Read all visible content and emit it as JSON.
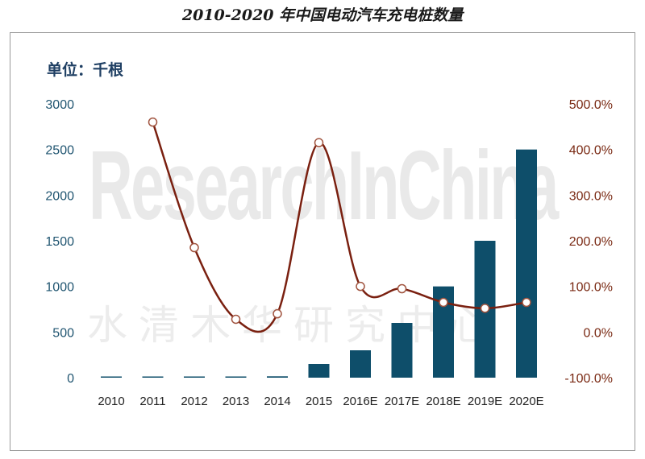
{
  "title": "2010-2020 年中国电动汽车充电桩数量",
  "unit_label": "单位：千根",
  "watermark": {
    "en": "ResearchInChina",
    "cn": "水清木华研究中心"
  },
  "colors": {
    "bar": "#0e4e6a",
    "line": "#7a2010",
    "marker_stroke": "#a0533e",
    "marker_fill": "#ffffff"
  },
  "chart_data": {
    "type": "bar",
    "categories": [
      "2010",
      "2011",
      "2012",
      "2013",
      "2014",
      "2015",
      "2016E",
      "2017E",
      "2018E",
      "2019E",
      "2020E"
    ],
    "series": [
      {
        "type": "bar",
        "axis": "left",
        "values": [
          3,
          5,
          7,
          8,
          15,
          150,
          300,
          600,
          1000,
          1500,
          2500
        ]
      },
      {
        "type": "line",
        "axis": "right",
        "smooth": true,
        "values": [
          null,
          460,
          185,
          28,
          40,
          415,
          100,
          95,
          65,
          52,
          65
        ]
      }
    ],
    "y_left": {
      "min": 0,
      "max": 3000,
      "ticks": [
        0,
        500,
        1000,
        1500,
        2000,
        2500,
        3000
      ],
      "tick_labels": [
        "0",
        "500",
        "1000",
        "1500",
        "2000",
        "2500",
        "3000"
      ]
    },
    "y_right": {
      "min": -100,
      "max": 500,
      "ticks": [
        -100,
        0,
        100,
        200,
        300,
        400,
        500
      ],
      "tick_labels": [
        "-100.0%",
        "0.0%",
        "100.0%",
        "200.0%",
        "300.0%",
        "400.0%",
        "500.0%"
      ]
    },
    "grid": false,
    "legend": "none"
  }
}
